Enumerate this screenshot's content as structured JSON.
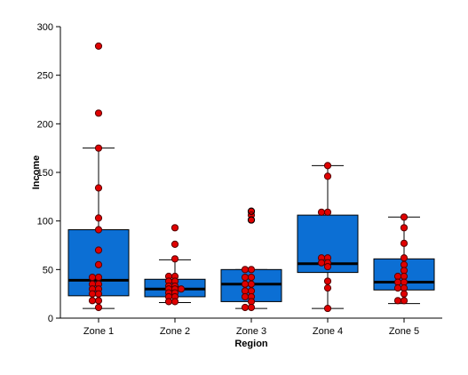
{
  "chart_data": {
    "type": "boxplot",
    "xlabel": "Region",
    "ylabel": "Income",
    "ylim": [
      0,
      300
    ],
    "yticks": [
      0,
      50,
      100,
      150,
      200,
      250,
      300
    ],
    "categories": [
      "Zone 1",
      "Zone 2",
      "Zone 3",
      "Zone 4",
      "Zone 5"
    ],
    "grid": false,
    "colors": {
      "box": "#0c6fd4",
      "median": "#000000",
      "point": "#e00000",
      "point_edge": "#550000"
    },
    "boxes": [
      {
        "category": "Zone 1",
        "whisker_low": 10,
        "q1": 23,
        "median": 39,
        "q3": 91,
        "whisker_high": 175
      },
      {
        "category": "Zone 2",
        "whisker_low": 16,
        "q1": 22,
        "median": 30,
        "q3": 40,
        "whisker_high": 60
      },
      {
        "category": "Zone 3",
        "whisker_low": 10,
        "q1": 17,
        "median": 35,
        "q3": 50,
        "whisker_high": 50
      },
      {
        "category": "Zone 4",
        "whisker_low": 10,
        "q1": 47,
        "median": 56,
        "q3": 106,
        "whisker_high": 157
      },
      {
        "category": "Zone 5",
        "whisker_low": 15,
        "q1": 29,
        "median": 37,
        "q3": 61,
        "whisker_high": 104
      }
    ],
    "points": [
      {
        "category": "Zone 1",
        "values": [
          280,
          211,
          175,
          134,
          103,
          91,
          70,
          55,
          42,
          35,
          30,
          25,
          18,
          11,
          42,
          35,
          30,
          25,
          18
        ]
      },
      {
        "category": "Zone 2",
        "values": [
          93,
          76,
          61,
          43,
          38,
          33,
          30,
          26,
          22,
          17,
          43,
          38,
          33,
          30,
          26,
          22,
          17,
          30
        ]
      },
      {
        "category": "Zone 3",
        "values": [
          110,
          106,
          101,
          50,
          42,
          35,
          28,
          22,
          17,
          11,
          50,
          42,
          35,
          28,
          22,
          11
        ]
      },
      {
        "category": "Zone 4",
        "values": [
          157,
          146,
          109,
          62,
          57,
          53,
          38,
          31,
          10,
          109,
          62,
          57
        ]
      },
      {
        "category": "Zone 5",
        "values": [
          104,
          93,
          77,
          62,
          55,
          49,
          43,
          37,
          31,
          25,
          18,
          43,
          37,
          31,
          18
        ]
      }
    ],
    "outliers": [
      {
        "category": "Zone 3",
        "values": [
          110,
          101
        ]
      }
    ]
  }
}
